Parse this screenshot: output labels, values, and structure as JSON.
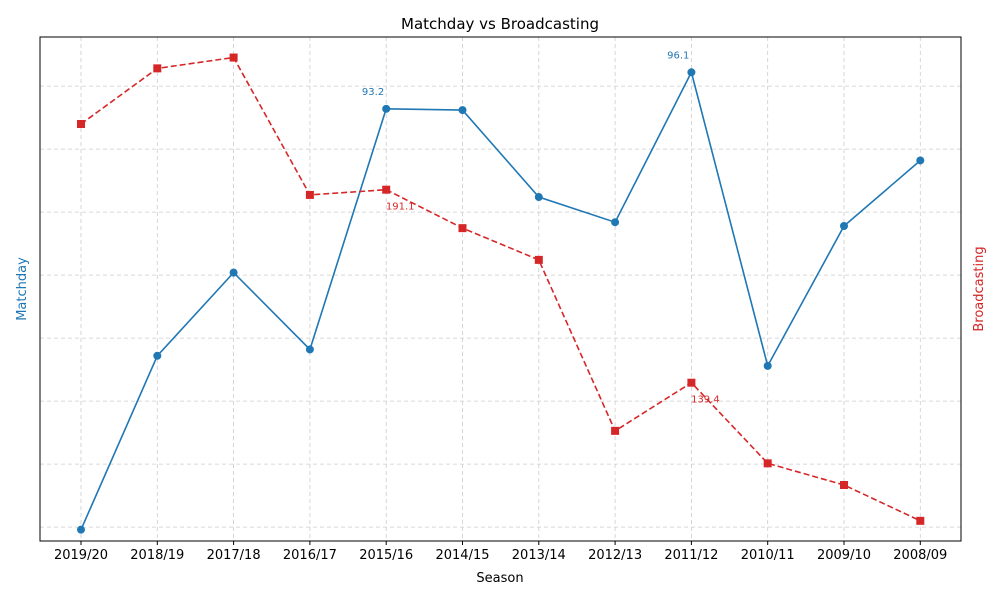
{
  "colors": {
    "matchday": "#1f77b4",
    "broadcasting": "#d62728",
    "grid": "#cccccc",
    "axis": "#000000"
  },
  "chart_data": {
    "type": "line",
    "title": "Matchday vs Broadcasting",
    "xlabel": "Season",
    "ylabel_left": "Matchday",
    "ylabel_right": "Broadcasting",
    "grid": true,
    "categories": [
      "2019/20",
      "2018/19",
      "2017/18",
      "2016/17",
      "2015/16",
      "2014/15",
      "2013/14",
      "2012/13",
      "2011/12",
      "2010/11",
      "2009/10",
      "2008/09"
    ],
    "series": [
      {
        "name": "Matchday",
        "axis": "left",
        "marker": "circle",
        "line_style": "solid",
        "values": [
          59.8,
          73.6,
          80.2,
          74.1,
          93.2,
          93.1,
          86.2,
          84.2,
          96.1,
          72.8,
          83.9,
          89.1
        ],
        "ylim": [
          58.9,
          98.9
        ]
      },
      {
        "name": "Broadcasting",
        "axis": "right",
        "marker": "square",
        "line_style": "dashed",
        "values": [
          208.7,
          223.6,
          226.5,
          189.7,
          191.1,
          180.8,
          172.3,
          126.5,
          139.4,
          117.8,
          112.0,
          102.4
        ],
        "ylim": [
          97.0,
          232.0
        ]
      }
    ],
    "annotations": [
      {
        "series": "Matchday",
        "category": "2015/16",
        "text": "93.2",
        "position": "above-left"
      },
      {
        "series": "Matchday",
        "category": "2011/12",
        "text": "96.1",
        "position": "above-left"
      },
      {
        "series": "Broadcasting",
        "category": "2015/16",
        "text": "191.1",
        "position": "below"
      },
      {
        "series": "Broadcasting",
        "category": "2011/12",
        "text": "139.4",
        "position": "below"
      }
    ]
  }
}
